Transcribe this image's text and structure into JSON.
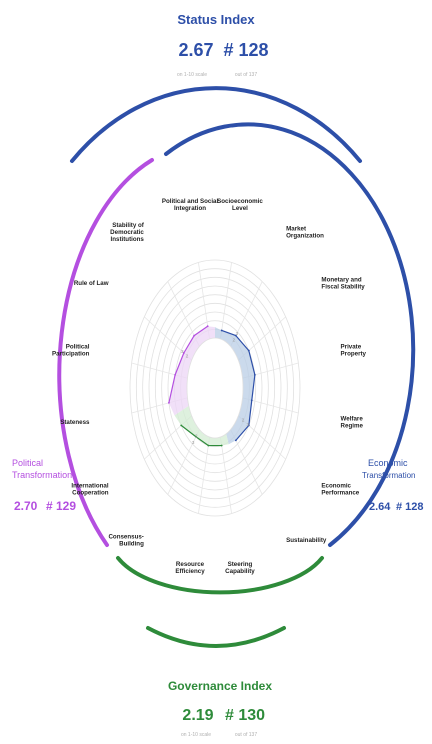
{
  "status": {
    "title": "Status Index",
    "score": "2.67",
    "rank": "# 128",
    "scale_note": "on 1-10 scale",
    "out_of": "out of 137"
  },
  "political": {
    "title_line1": "Political",
    "title_line2": "Transformation",
    "score": "2.70",
    "rank": "# 129"
  },
  "economic": {
    "title_line1": "Economic",
    "title_line2": "Transformation",
    "score": "2.64",
    "rank": "# 128"
  },
  "governance": {
    "title": "Governance Index",
    "score": "2.19",
    "rank": "# 130",
    "scale_note": "on 1-10 scale",
    "out_of": "out of 137"
  },
  "colors": {
    "status": "#2d4fa8",
    "political": "#b44fe0",
    "economic": "#2d4fa8",
    "governance": "#2e8b3a",
    "economic_fill": "#b9cde6",
    "political_fill": "#ecd6f6",
    "governance_fill": "#d3ecd3"
  },
  "chart_data": {
    "type": "radar",
    "rlim": [
      1,
      10
    ],
    "ticks": [
      "1",
      "2",
      "3",
      "4",
      "5",
      "6",
      "7",
      "8",
      "9",
      "10"
    ],
    "axes": [
      {
        "line1": "Socioeconomic",
        "line2": "Level",
        "group": "economic",
        "value": 2.0
      },
      {
        "line1": "Market",
        "line2": "Organization",
        "group": "economic",
        "value": 2.5
      },
      {
        "line1": "Monetary and",
        "line2": "Fiscal Stability",
        "group": "economic",
        "value": 3.0
      },
      {
        "line1": "Private",
        "line2": "Property",
        "group": "economic",
        "value": 3.0
      },
      {
        "line1": "Welfare",
        "line2": "Regime",
        "group": "economic",
        "value": 2.5
      },
      {
        "line1": "Economic",
        "line2": "Performance",
        "group": "economic",
        "value": 3.0
      },
      {
        "line1": "Sustainability",
        "line2": "",
        "group": "economic",
        "value": 2.5
      },
      {
        "line1": "Steering",
        "line2": "Capability",
        "group": "governance",
        "value": 2.0
      },
      {
        "line1": "Resource",
        "line2": "Efficiency",
        "group": "governance",
        "value": 2.0
      },
      {
        "line1": "Consensus-",
        "line2": "Building",
        "group": "governance",
        "value": 2.0
      },
      {
        "line1": "International",
        "line2": "Cooperation",
        "group": "governance",
        "value": 3.0
      },
      {
        "line1": "Stateness",
        "line2": "",
        "group": "political",
        "value": 4.0
      },
      {
        "line1": "Political",
        "line2": "Participation",
        "group": "political",
        "value": 3.0
      },
      {
        "line1": "Rule of Law",
        "line2": "",
        "group": "political",
        "value": 2.5
      },
      {
        "line1": "Stability of",
        "line2": "Democratic",
        "line3": "Institutions",
        "group": "political",
        "value": 2.5
      },
      {
        "line1": "Political and Social",
        "line2": "Integration",
        "group": "political",
        "value": 2.5
      }
    ]
  }
}
